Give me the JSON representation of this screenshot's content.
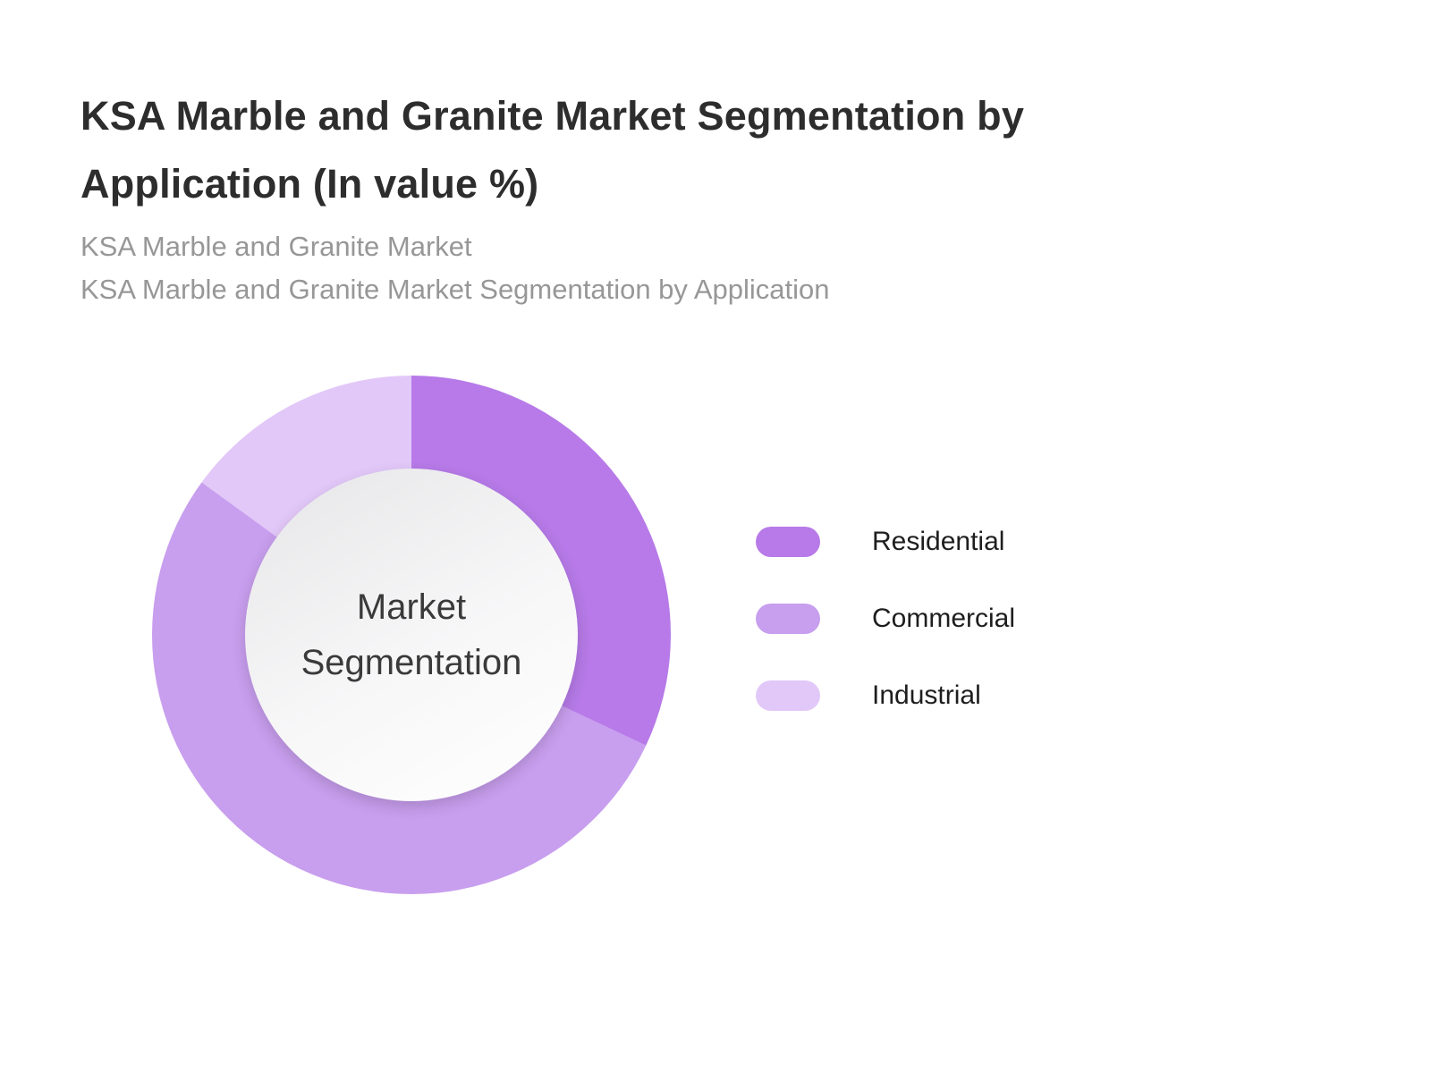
{
  "header": {
    "title": "KSA Marble and Granite Market Segmentation by Application (In value %)",
    "subtitle_line1": "KSA Marble and Granite Market",
    "subtitle_line2": "KSA Marble and Granite Market Segmentation by Application"
  },
  "donut_center": {
    "line1": "Market",
    "line2": "Segmentation"
  },
  "chart_data": {
    "type": "pie",
    "donut": true,
    "title": "KSA Marble and Granite Market Segmentation by Application (In value %)",
    "subtitle_lines": [
      "KSA Marble and Granite Market",
      "KSA Marble and Granite Market Segmentation by Application"
    ],
    "categories": [
      "Residential",
      "Commercial",
      "Industrial"
    ],
    "values": [
      32,
      53,
      15
    ],
    "unit": "%",
    "colors": [
      "#b77ae8",
      "#c89eee",
      "#e2c8f8"
    ],
    "center_label": "Market Segmentation",
    "legend_position": "right",
    "start_angle_deg": 0,
    "direction": "clockwise"
  }
}
